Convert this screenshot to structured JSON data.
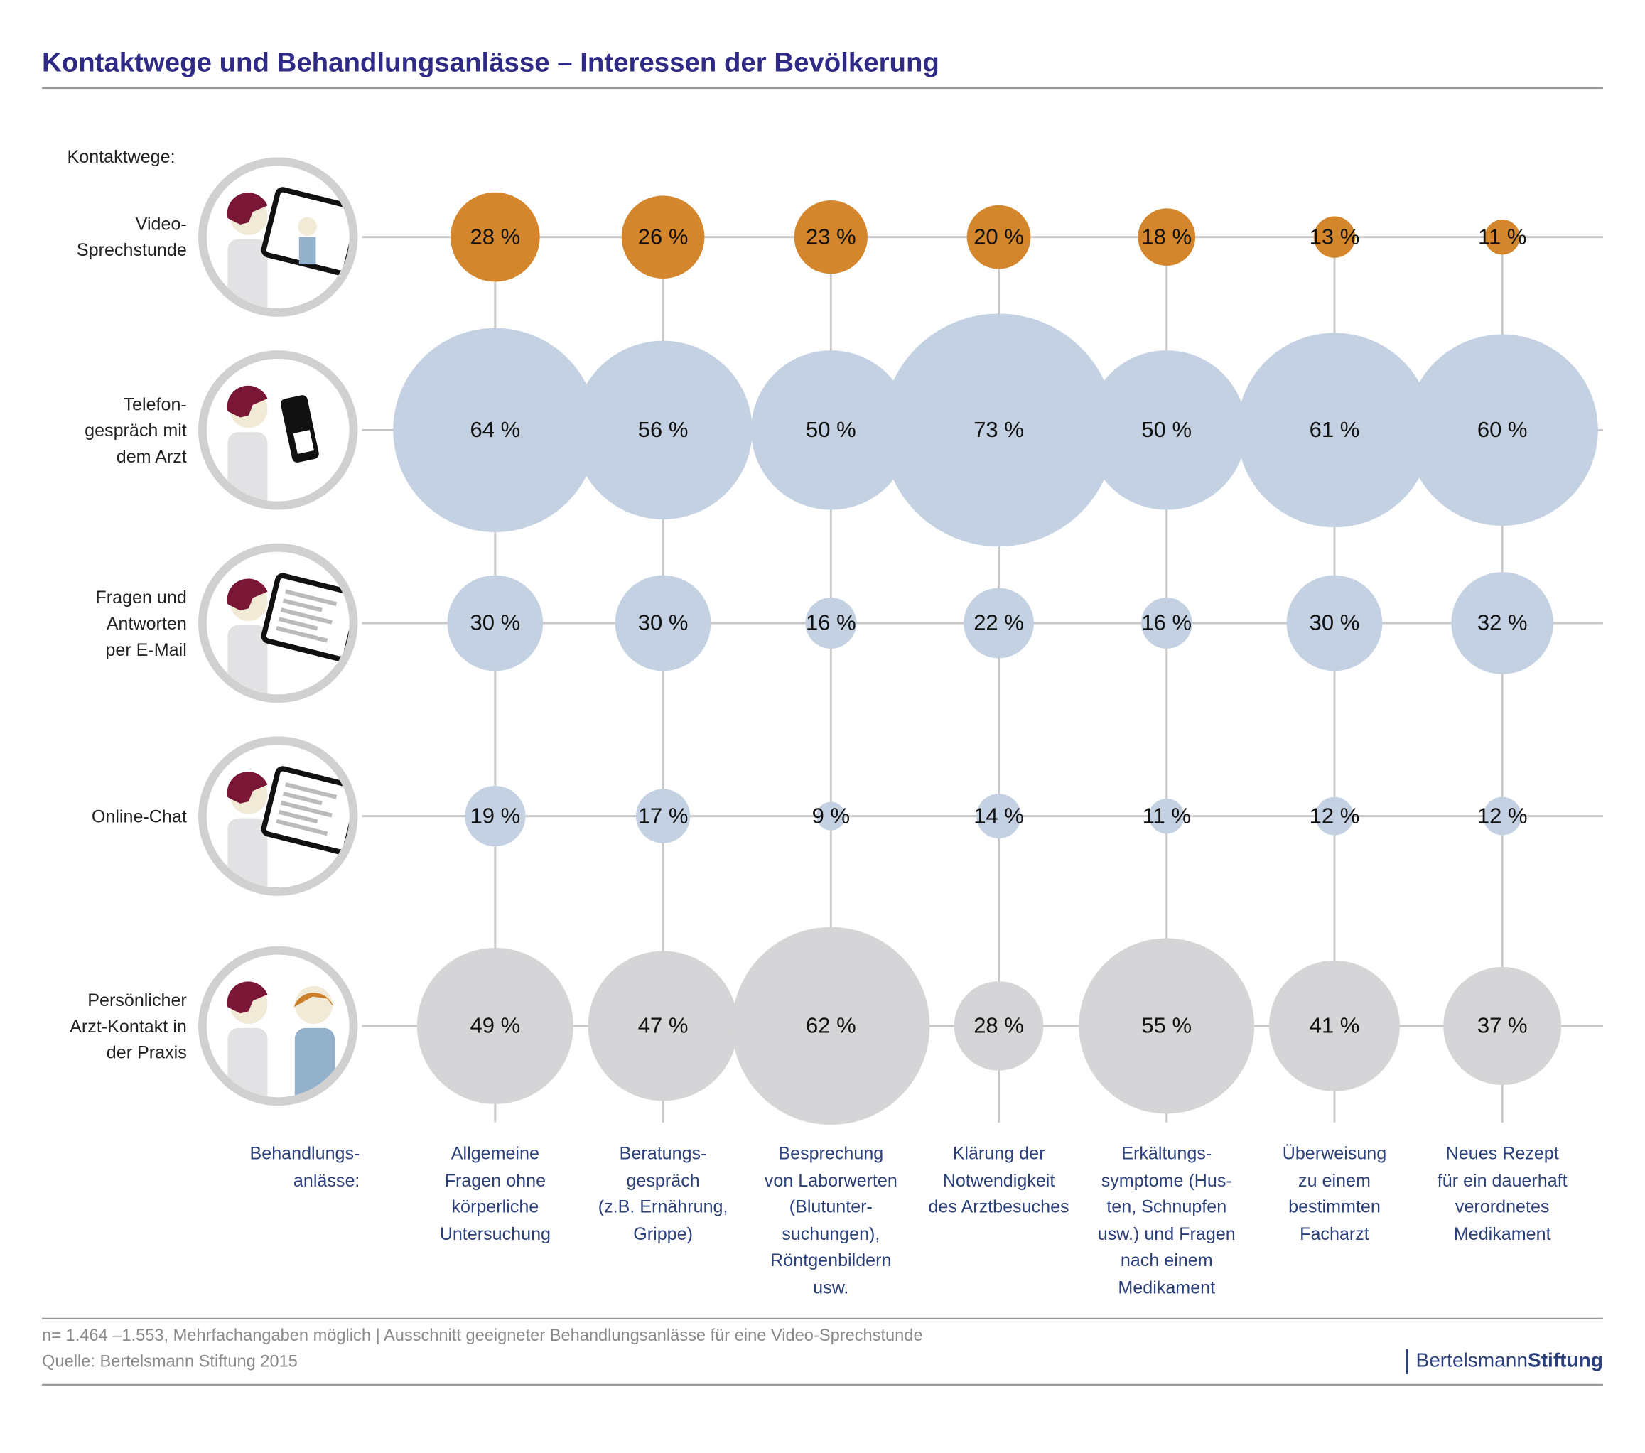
{
  "chart_data": {
    "type": "bubble",
    "title": "Kontaktwege und Behandlungsanlässe – Interessen der Bevölkerung",
    "row_heading": "Kontaktwege:",
    "column_heading": "Behandlungs-\nanlässe:",
    "categories": [
      "Allgemeine\nFragen ohne\nkörperliche\nUntersuchung",
      "Beratungs-\ngespräch\n(z.B. Ernährung,\nGrippe)",
      "Besprechung\nvon Laborwerten\n(Blutunter-\nsuchungen),\nRöntgenbildern\nusw.",
      "Klärung der\nNotwendigkeit\ndes Arztbesuches",
      "Erkältungs-\nsymptome (Hus-\nten, Schnupfen\nusw.) und  Fragen\nnach einem\nMedikament",
      "Überweisung\nzu einem\nbestimmten\nFacharzt",
      "Neues Rezept\nfür ein dauerhaft\nverordnetes\nMedikament"
    ],
    "series": [
      {
        "name": "Video-\nSprechstunde",
        "color": "#d4862c",
        "values": [
          28,
          26,
          23,
          20,
          18,
          13,
          11
        ],
        "value_labels": [
          "28 %",
          "26 %",
          "23 %",
          "20 %",
          "18 %",
          "13 %",
          "11 %"
        ]
      },
      {
        "name": "Telefon-\ngespräch mit\ndem Arzt",
        "color": "#c3d1e2",
        "values": [
          64,
          56,
          50,
          73,
          50,
          61,
          60
        ],
        "value_labels": [
          "64 %",
          "56 %",
          "50 %",
          "73 %",
          "50 %",
          "61 %",
          "60 %"
        ]
      },
      {
        "name": "Fragen und\nAntworten\nper E-Mail",
        "color": "#c3d1e2",
        "values": [
          30,
          30,
          16,
          22,
          16,
          30,
          32
        ],
        "value_labels": [
          "30 %",
          "30 %",
          "16 %",
          "22 %",
          "16 %",
          "30 %",
          "32 %"
        ]
      },
      {
        "name": "Online-Chat",
        "color": "#c3d1e2",
        "values": [
          19,
          17,
          9,
          14,
          11,
          12,
          12
        ],
        "value_labels": [
          "19 %",
          "17 %",
          "9 %",
          "14 %",
          "11 %",
          "12 %",
          "12 %"
        ]
      },
      {
        "name": "Persönlicher\nArzt-Kontakt in\nder Praxis",
        "color": "#d5d5d7",
        "values": [
          49,
          47,
          62,
          28,
          55,
          41,
          37
        ],
        "value_labels": [
          "49 %",
          "47 %",
          "62 %",
          "28 %",
          "55 %",
          "41 %",
          "37 %"
        ]
      }
    ],
    "note": "n= 1.464 –1.553, Mehrfachangaben möglich | Ausschnitt geeigneter Behandlungsanlässe für eine Video-Sprechstunde",
    "source": "Quelle: Bertelsmann Stiftung 2015",
    "logo": {
      "first": "Bertelsmann",
      "second": "Stiftung"
    }
  }
}
